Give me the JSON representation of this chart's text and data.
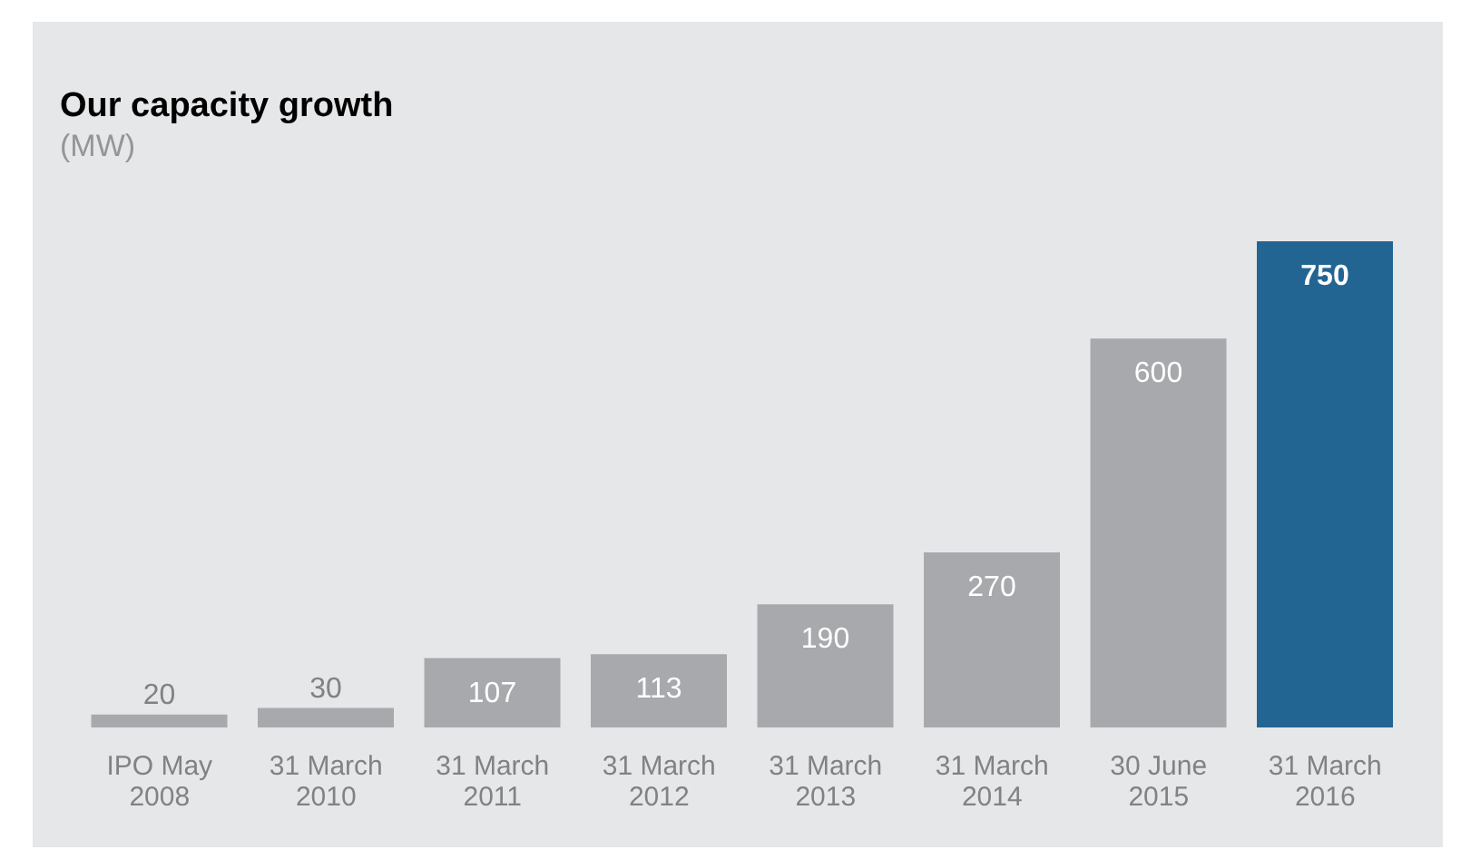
{
  "chart_data": {
    "type": "bar",
    "title": "Our capacity growth",
    "subtitle": "(MW)",
    "categories": [
      "IPO May 2008",
      "31 March 2010",
      "31 March 2011",
      "31 March 2012",
      "31 March 2013",
      "31 March 2014",
      "30 June 2015",
      "31 March 2016"
    ],
    "values": [
      20,
      30,
      107,
      113,
      190,
      270,
      600,
      750
    ],
    "colors": [
      "#a7a9ac",
      "#a7a9ac",
      "#a7a9ac",
      "#a7a9ac",
      "#a7a9ac",
      "#a7a9ac",
      "#a7a9ac",
      "#236592"
    ],
    "data_labels": true
  }
}
